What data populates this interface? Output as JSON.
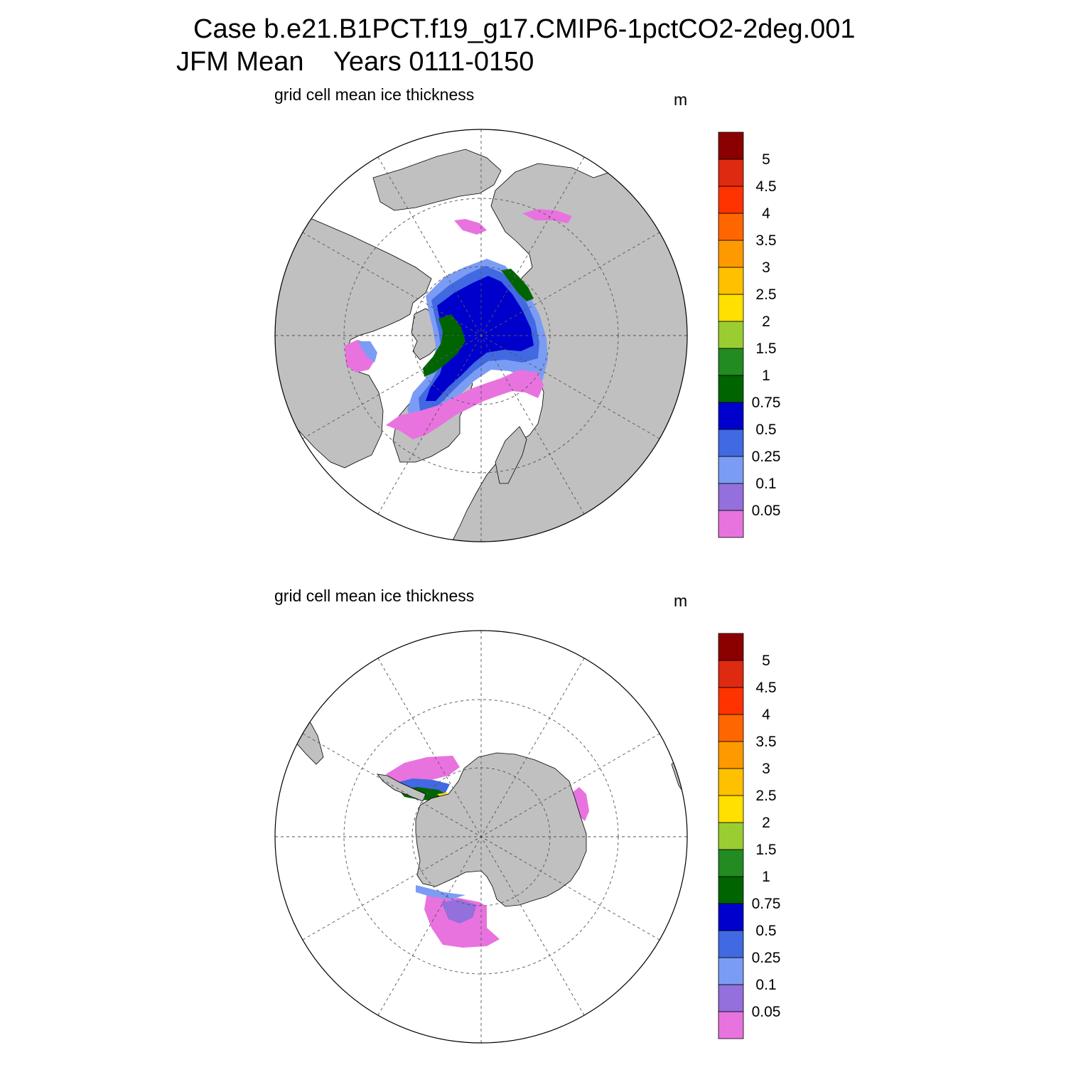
{
  "title": {
    "line1": "Case b.e21.B1PCT.f19_g17.CMIP6-1pctCO2-2deg.001",
    "line2": "JFM Mean    Years 0111-0150"
  },
  "panels": [
    {
      "id": "north",
      "hemisphere": "Northern",
      "subtitle": "grid cell mean ice thickness",
      "units": "m"
    },
    {
      "id": "south",
      "hemisphere": "Southern",
      "subtitle": "grid cell mean ice thickness",
      "units": "m"
    }
  ],
  "colorbar": {
    "labels": [
      "0.05",
      "0.1",
      "0.25",
      "0.5",
      "0.75",
      "1",
      "1.5",
      "2",
      "2.5",
      "3",
      "3.5",
      "4",
      "4.5",
      "5"
    ],
    "colors": [
      "#e873df",
      "#9370db",
      "#7b9cf4",
      "#4169e1",
      "#0000cd",
      "#006400",
      "#228b22",
      "#9acd32",
      "#ffe000",
      "#ffc000",
      "#ff9900",
      "#ff6600",
      "#ff3300",
      "#dd2a10",
      "#8b0000"
    ]
  },
  "map_colors": {
    "land": "#c0c0c0",
    "ocean": "#ffffff",
    "grid": "#555555"
  }
}
